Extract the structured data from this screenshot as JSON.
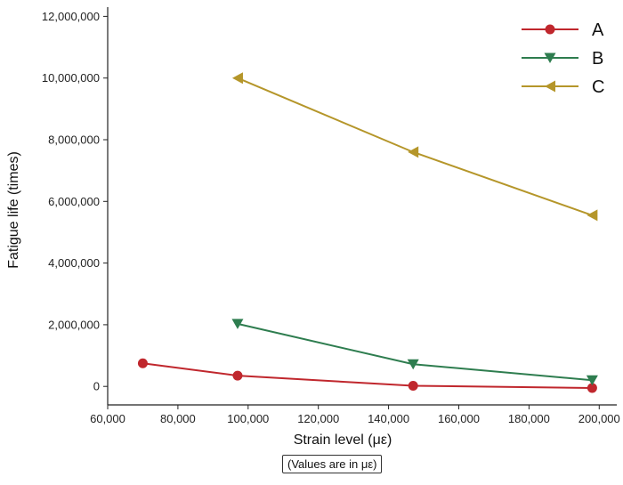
{
  "chart_data": {
    "type": "line",
    "xlabel": "Strain level (με)",
    "ylabel": "Fatigue life (times)",
    "note": "(Values are in με)",
    "xlim": [
      60000,
      205000
    ],
    "ylim": [
      -600000,
      12300000
    ],
    "xticks": [
      60000,
      80000,
      100000,
      120000,
      140000,
      160000,
      180000,
      200000
    ],
    "yticks": [
      0,
      2000000,
      4000000,
      6000000,
      8000000,
      10000000,
      12000000
    ],
    "xtick_labels": [
      "60,000",
      "80,000",
      "100,000",
      "120,000",
      "140,000",
      "160,000",
      "180,000",
      "200,000"
    ],
    "ytick_labels": [
      "0",
      "2,000,000",
      "4,000,000",
      "6,000,000",
      "8,000,000",
      "10,000,000",
      "12,000,000"
    ],
    "grid": false,
    "legend_position": "top-right",
    "series": [
      {
        "name": "A",
        "color": "#c0272d",
        "marker": "circle",
        "x": [
          70000,
          97000,
          147000,
          198000
        ],
        "y": [
          750000,
          350000,
          20000,
          -50000
        ]
      },
      {
        "name": "B",
        "color": "#2e7d4f",
        "marker": "triangle-down",
        "x": [
          97000,
          147000,
          198000
        ],
        "y": [
          2030000,
          720000,
          200000
        ]
      },
      {
        "name": "C",
        "color": "#b5962a",
        "marker": "triangle-left",
        "x": [
          97000,
          147000,
          198000
        ],
        "y": [
          10000000,
          7600000,
          5550000
        ]
      }
    ]
  }
}
